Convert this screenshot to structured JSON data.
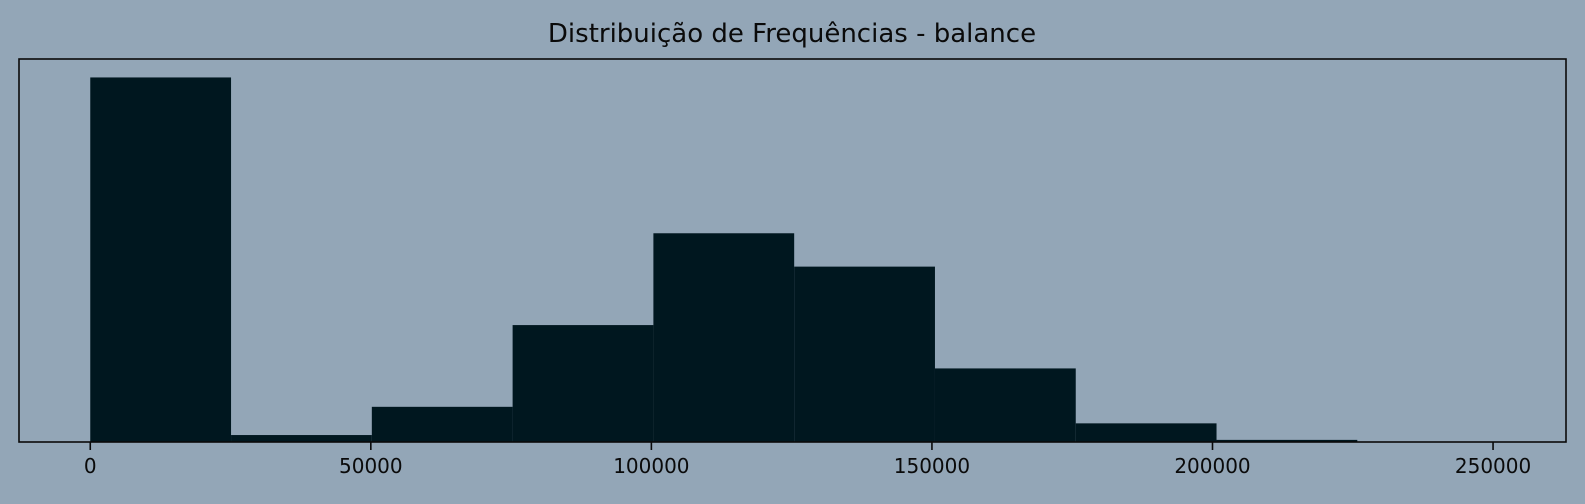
{
  "chart_data": {
    "type": "bar",
    "title": "Distribuição de Frequências - balance",
    "xlabel": "",
    "ylabel": "",
    "xlim": [
      -12700,
      263000
    ],
    "ylim": [
      0,
      3800
    ],
    "x_ticks": [
      0,
      50000,
      100000,
      150000,
      200000,
      250000
    ],
    "x_tick_labels": [
      "0",
      "50000",
      "100000",
      "150000",
      "200000",
      "250000"
    ],
    "y_ticks_visible": false,
    "grid": false,
    "bins": [
      {
        "start": 0,
        "end": 25089.8,
        "count": 3617
      },
      {
        "start": 25089.8,
        "end": 50179.6,
        "count": 69
      },
      {
        "start": 50179.6,
        "end": 75269.4,
        "count": 349
      },
      {
        "start": 75269.4,
        "end": 100359.2,
        "count": 1160
      },
      {
        "start": 100359.2,
        "end": 125449.0,
        "count": 2071
      },
      {
        "start": 125449.0,
        "end": 150538.8,
        "count": 1740
      },
      {
        "start": 150538.8,
        "end": 175628.6,
        "count": 730
      },
      {
        "start": 175628.6,
        "end": 200718.4,
        "count": 185
      },
      {
        "start": 200718.4,
        "end": 225808.2,
        "count": 21
      },
      {
        "start": 225808.2,
        "end": 250898.1,
        "count": 2
      }
    ],
    "colors": {
      "background": "#93a6b7",
      "bar": "#00171f",
      "axes": "#0a0a0a"
    }
  }
}
